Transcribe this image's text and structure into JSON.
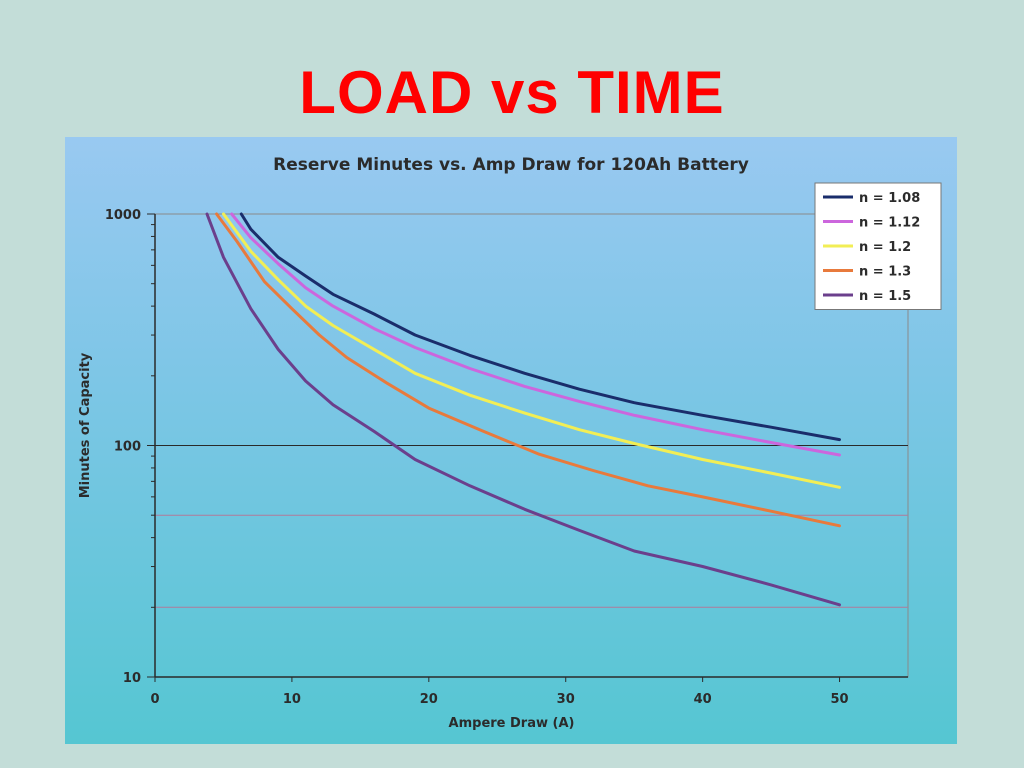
{
  "slide": {
    "title": "LOAD vs TIME"
  },
  "chart_data": {
    "type": "line",
    "title": "Reserve Minutes vs. Amp Draw for 120Ah Battery",
    "xlabel": "Ampere Draw (A)",
    "ylabel": "Minutes of Capacity",
    "xlim": [
      0,
      55
    ],
    "ylim": [
      10,
      1000
    ],
    "yscale": "log",
    "x_ticks": [
      0,
      10,
      20,
      30,
      40,
      50
    ],
    "y_ticks": [
      10,
      100,
      1000
    ],
    "grid_major": [
      100,
      1000
    ],
    "grid_extra_lines": [
      50,
      20
    ],
    "grid_extra_color": "#b07a9a",
    "legend_position": "top-right",
    "series": [
      {
        "name": "n = 1.08",
        "color": "#1a2d6b",
        "points": [
          [
            6.3,
            1000
          ],
          [
            7,
            860
          ],
          [
            9,
            650
          ],
          [
            11,
            540
          ],
          [
            13,
            450
          ],
          [
            16,
            370
          ],
          [
            19,
            300
          ],
          [
            23,
            245
          ],
          [
            27,
            205
          ],
          [
            31,
            175
          ],
          [
            35,
            153
          ],
          [
            40,
            135
          ],
          [
            45,
            120
          ],
          [
            50,
            106
          ]
        ]
      },
      {
        "name": "n = 1.12",
        "color": "#cc66dd",
        "points": [
          [
            5.6,
            1000
          ],
          [
            7,
            790
          ],
          [
            9,
            610
          ],
          [
            11,
            480
          ],
          [
            13,
            400
          ],
          [
            16,
            320
          ],
          [
            19,
            265
          ],
          [
            23,
            215
          ],
          [
            27,
            180
          ],
          [
            31,
            155
          ],
          [
            35,
            135
          ],
          [
            40,
            117
          ],
          [
            45,
            103
          ],
          [
            50,
            91
          ]
        ]
      },
      {
        "name": "n = 1.2",
        "color": "#f2ee55",
        "points": [
          [
            5.0,
            1000
          ],
          [
            7,
            690
          ],
          [
            9,
            520
          ],
          [
            11,
            400
          ],
          [
            13,
            330
          ],
          [
            16,
            260
          ],
          [
            19,
            205
          ],
          [
            23,
            165
          ],
          [
            27,
            138
          ],
          [
            31,
            117
          ],
          [
            35,
            102
          ],
          [
            40,
            87
          ],
          [
            45,
            76
          ],
          [
            50,
            66
          ]
        ]
      },
      {
        "name": "n = 1.3",
        "color": "#e87a3c",
        "points": [
          [
            4.5,
            1000
          ],
          [
            6,
            760
          ],
          [
            8,
            510
          ],
          [
            10,
            390
          ],
          [
            12,
            300
          ],
          [
            14,
            240
          ],
          [
            17,
            185
          ],
          [
            20,
            145
          ],
          [
            24,
            115
          ],
          [
            28,
            92
          ],
          [
            32,
            78
          ],
          [
            36,
            67
          ],
          [
            40,
            60
          ],
          [
            45,
            52
          ],
          [
            50,
            45
          ]
        ]
      },
      {
        "name": "n = 1.5",
        "color": "#6b3f8c",
        "points": [
          [
            3.8,
            1000
          ],
          [
            5,
            650
          ],
          [
            7,
            390
          ],
          [
            9,
            260
          ],
          [
            11,
            190
          ],
          [
            13,
            150
          ],
          [
            16,
            115
          ],
          [
            19,
            87
          ],
          [
            23,
            67
          ],
          [
            27,
            53
          ],
          [
            31,
            43
          ],
          [
            35,
            35
          ],
          [
            40,
            30
          ],
          [
            45,
            25
          ],
          [
            50,
            20.5
          ]
        ]
      }
    ]
  }
}
